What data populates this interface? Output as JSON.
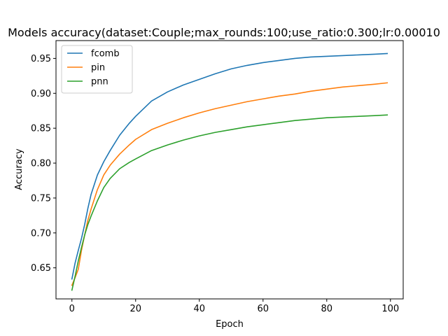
{
  "chart_data": {
    "type": "line",
    "title": "Models accuracy(dataset:Couple;max_rounds:100;use_ratio:0.300;lr:0.00010",
    "xlabel": "Epoch",
    "ylabel": "Accuracy",
    "xlim": [
      -5,
      104
    ],
    "ylim": [
      0.6055,
      0.9755
    ],
    "xticks": [
      0,
      20,
      40,
      60,
      80,
      100
    ],
    "xtick_labels": [
      "0",
      "20",
      "40",
      "60",
      "80",
      "100"
    ],
    "yticks": [
      0.65,
      0.7,
      0.75,
      0.8,
      0.85,
      0.9,
      0.95
    ],
    "ytick_labels": [
      "0.65",
      "0.70",
      "0.75",
      "0.80",
      "0.85",
      "0.90",
      "0.95"
    ],
    "grid": false,
    "legend_position": "top-left",
    "x": [
      0,
      1,
      2,
      3,
      4,
      5,
      6,
      8,
      10,
      12,
      15,
      18,
      20,
      25,
      30,
      35,
      40,
      45,
      50,
      55,
      60,
      65,
      70,
      75,
      80,
      85,
      90,
      95,
      99
    ],
    "series": [
      {
        "name": "fcomb",
        "color": "#1f77b4",
        "values": [
          0.634,
          0.657,
          0.675,
          0.692,
          0.712,
          0.735,
          0.755,
          0.783,
          0.802,
          0.818,
          0.84,
          0.857,
          0.867,
          0.889,
          0.902,
          0.912,
          0.92,
          0.928,
          0.935,
          0.94,
          0.944,
          0.947,
          0.95,
          0.952,
          0.953,
          0.954,
          0.955,
          0.956,
          0.957
        ]
      },
      {
        "name": "pin",
        "color": "#ff7f0e",
        "values": [
          0.625,
          0.636,
          0.648,
          0.675,
          0.697,
          0.718,
          0.734,
          0.762,
          0.783,
          0.797,
          0.813,
          0.826,
          0.834,
          0.848,
          0.857,
          0.865,
          0.872,
          0.878,
          0.883,
          0.888,
          0.892,
          0.896,
          0.899,
          0.903,
          0.906,
          0.909,
          0.911,
          0.913,
          0.915
        ]
      },
      {
        "name": "pnn",
        "color": "#2ca02c",
        "values": [
          0.618,
          0.638,
          0.66,
          0.679,
          0.697,
          0.712,
          0.724,
          0.746,
          0.765,
          0.778,
          0.792,
          0.801,
          0.806,
          0.818,
          0.826,
          0.833,
          0.839,
          0.844,
          0.848,
          0.852,
          0.855,
          0.858,
          0.861,
          0.863,
          0.865,
          0.866,
          0.867,
          0.868,
          0.869
        ]
      }
    ]
  }
}
